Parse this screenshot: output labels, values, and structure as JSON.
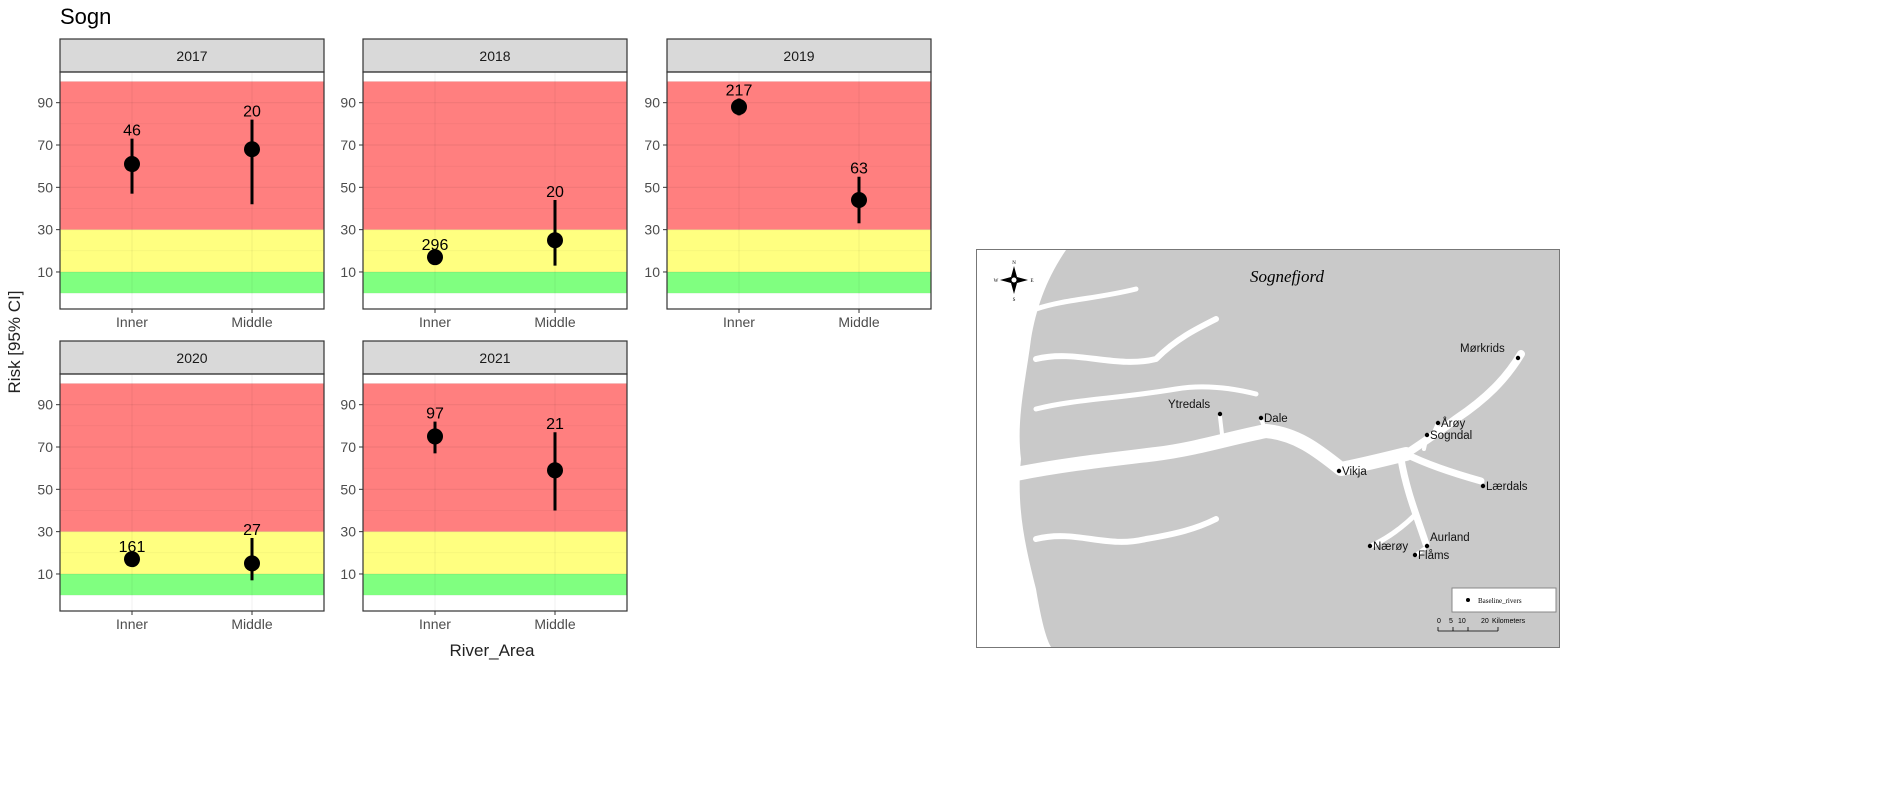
{
  "chart_data": {
    "type": "scatter",
    "title": "Sogn",
    "xlabel": "River_Area",
    "ylabel": "Risk [95% CI]",
    "ylim": [
      -7.5,
      104.5
    ],
    "yticks": [
      10,
      30,
      50,
      70,
      90
    ],
    "categories": [
      "Inner",
      "Middle"
    ],
    "bands": [
      {
        "from": 30,
        "to": 100,
        "color": "#ff7f7f"
      },
      {
        "from": 10,
        "to": 30,
        "color": "#ffff80"
      },
      {
        "from": 0,
        "to": 10,
        "color": "#80ff80"
      }
    ],
    "grid": true,
    "panels": [
      {
        "facet": "2017",
        "points": [
          {
            "category": "Inner",
            "value": 61,
            "lower": 47,
            "upper": 73,
            "label": "46"
          },
          {
            "category": "Middle",
            "value": 68,
            "lower": 42,
            "upper": 82,
            "label": "20"
          }
        ]
      },
      {
        "facet": "2018",
        "points": [
          {
            "category": "Inner",
            "value": 17,
            "lower": 15,
            "upper": 19,
            "label": "296"
          },
          {
            "category": "Middle",
            "value": 25,
            "lower": 13,
            "upper": 44,
            "label": "20"
          }
        ]
      },
      {
        "facet": "2019",
        "points": [
          {
            "category": "Inner",
            "value": 88,
            "lower": 84,
            "upper": 92,
            "label": "217"
          },
          {
            "category": "Middle",
            "value": 44,
            "lower": 33,
            "upper": 55,
            "label": "63"
          }
        ]
      },
      {
        "facet": "2020",
        "points": [
          {
            "category": "Inner",
            "value": 17,
            "lower": 15,
            "upper": 19,
            "label": "161"
          },
          {
            "category": "Middle",
            "value": 15,
            "lower": 7,
            "upper": 27,
            "label": "27"
          }
        ]
      },
      {
        "facet": "2021",
        "points": [
          {
            "category": "Inner",
            "value": 75,
            "lower": 67,
            "upper": 82,
            "label": "97"
          },
          {
            "category": "Middle",
            "value": 59,
            "lower": 40,
            "upper": 77,
            "label": "21"
          }
        ]
      }
    ]
  },
  "map": {
    "title": "Sognefjord",
    "compass": {
      "n": "N",
      "s": "S",
      "e": "E",
      "w": "W"
    },
    "rivers": [
      "Mørkrids",
      "Ytredals",
      "Dale",
      "Årøy",
      "Sogndal",
      "Vikja",
      "Lærdals",
      "Aurland",
      "Nærøy",
      "Flåms"
    ],
    "legend_label": "Baseline_rivers",
    "scale_ticks": [
      "0",
      "5",
      "10",
      "20"
    ],
    "scale_unit": "Kilometers"
  }
}
